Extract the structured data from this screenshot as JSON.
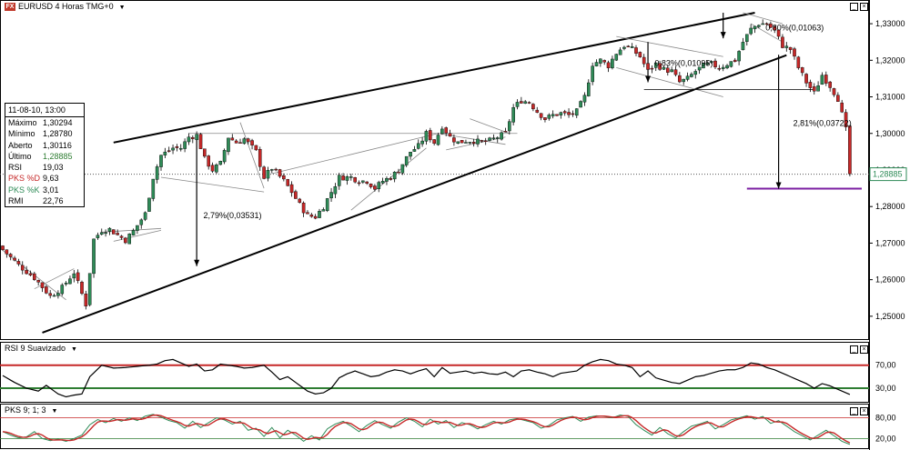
{
  "window": {
    "symbol_badge": "FX",
    "title": "EURUSD 4 Horas TMG+0"
  },
  "data_box": {
    "datetime": "11-08-10, 13:00",
    "rows": [
      {
        "label": "Máximo",
        "value": "1,30294",
        "color": "#000000"
      },
      {
        "label": "Mínimo",
        "value": "1,28780",
        "color": "#000000"
      },
      {
        "label": "Aberto",
        "value": "1,30116",
        "color": "#000000"
      },
      {
        "label": "Último",
        "value": "1,28885",
        "color": "#2e7d32"
      },
      {
        "label": "RSI",
        "value": "19,03",
        "color": "#000000"
      },
      {
        "label": "PKS %D",
        "value": "9,63",
        "color": "#c62828"
      },
      {
        "label": "PKS %K",
        "value": "3,01",
        "color": "#2e8b57"
      },
      {
        "label": "RMI",
        "value": "22,76",
        "color": "#000000"
      }
    ]
  },
  "rsi_pane": {
    "title": "RSI 9 Suavizado",
    "ticks": [
      "70,00",
      "30,00"
    ]
  },
  "pks_pane": {
    "title": "PKS 9; 1; 3",
    "ticks": [
      "80,00",
      "20,00"
    ]
  },
  "colors": {
    "up": "#2e8b57",
    "down": "#c62828",
    "rsi_line": "#000000",
    "pks_k": "#2e8b57",
    "pks_d": "#c62828",
    "target_line": "#7b1fa2"
  },
  "chart_data": {
    "type": "candlestick",
    "symbol": "EURUSD",
    "timeframe": "4 Horas",
    "y_ticks": [
      "1,33000",
      "1,32000",
      "1,31000",
      "1,30000",
      "1,29000",
      "1,28000",
      "1,27000",
      "1,26000",
      "1,25000"
    ],
    "ylim": [
      1.244,
      1.334
    ],
    "last_price": "1,28885",
    "annotations": [
      {
        "text": "2,79%(0,03531)",
        "x_index": 50,
        "y": 1.2768
      },
      {
        "text": "0,83%(0,01095)",
        "x_index": 164,
        "y": 1.3185
      },
      {
        "text": "0,80%(0,01063)",
        "x_index": 192,
        "y": 1.3282
      },
      {
        "text": "2,81%(0,03722)",
        "x_index": 199,
        "y": 1.302
      }
    ],
    "anchors": [
      [
        0,
        1.2682
      ],
      [
        4,
        1.264
      ],
      [
        8,
        1.2605
      ],
      [
        12,
        1.2555
      ],
      [
        15,
        1.2578
      ],
      [
        18,
        1.262
      ],
      [
        21,
        1.2532
      ],
      [
        23,
        1.271
      ],
      [
        25,
        1.2735
      ],
      [
        27,
        1.2738
      ],
      [
        29,
        1.2722
      ],
      [
        31,
        1.2708
      ],
      [
        33,
        1.2733
      ],
      [
        36,
        1.278
      ],
      [
        38,
        1.288
      ],
      [
        40,
        1.294
      ],
      [
        43,
        1.296
      ],
      [
        45,
        1.296
      ],
      [
        47,
        1.299
      ],
      [
        49,
        1.2995
      ],
      [
        51,
        1.293
      ],
      [
        53,
        1.29
      ],
      [
        55,
        1.2918
      ],
      [
        57,
        1.299
      ],
      [
        59,
        1.2975
      ],
      [
        61,
        1.2985
      ],
      [
        64,
        1.295
      ],
      [
        66,
        1.288
      ],
      [
        68,
        1.2905
      ],
      [
        71,
        1.287
      ],
      [
        73,
        1.284
      ],
      [
        75,
        1.2805
      ],
      [
        77,
        1.2775
      ],
      [
        79,
        1.2772
      ],
      [
        81,
        1.28
      ],
      [
        83,
        1.284
      ],
      [
        85,
        1.288
      ],
      [
        88,
        1.288
      ],
      [
        90,
        1.287
      ],
      [
        92,
        1.287
      ],
      [
        94,
        1.285
      ],
      [
        96,
        1.287
      ],
      [
        98,
        1.288
      ],
      [
        100,
        1.29
      ],
      [
        103,
        1.295
      ],
      [
        105,
        1.2965
      ],
      [
        107,
        1.3
      ],
      [
        109,
        1.2975
      ],
      [
        111,
        1.302
      ],
      [
        113,
        1.299
      ],
      [
        115,
        1.2975
      ],
      [
        117,
        1.298
      ],
      [
        119,
        1.298
      ],
      [
        121,
        1.2975
      ],
      [
        123,
        1.298
      ],
      [
        125,
        1.299
      ],
      [
        127,
        1.3
      ],
      [
        129,
        1.307
      ],
      [
        131,
        1.309
      ],
      [
        133,
        1.3085
      ],
      [
        135,
        1.306
      ],
      [
        137,
        1.304
      ],
      [
        139,
        1.305
      ],
      [
        141,
        1.3055
      ],
      [
        143,
        1.305
      ],
      [
        145,
        1.306
      ],
      [
        147,
        1.31
      ],
      [
        149,
        1.319
      ],
      [
        151,
        1.32
      ],
      [
        153,
        1.3185
      ],
      [
        155,
        1.322
      ],
      [
        157,
        1.324
      ],
      [
        159,
        1.323
      ],
      [
        161,
        1.321
      ],
      [
        163,
        1.317
      ],
      [
        165,
        1.319
      ],
      [
        167,
        1.3175
      ],
      [
        169,
        1.317
      ],
      [
        171,
        1.314
      ],
      [
        173,
        1.315
      ],
      [
        175,
        1.317
      ],
      [
        177,
        1.3185
      ],
      [
        179,
        1.319
      ],
      [
        181,
        1.318
      ],
      [
        183,
        1.319
      ],
      [
        185,
        1.32
      ],
      [
        187,
        1.325
      ],
      [
        189,
        1.3285
      ],
      [
        191,
        1.33
      ],
      [
        193,
        1.33
      ],
      [
        195,
        1.328
      ],
      [
        197,
        1.324
      ],
      [
        199,
        1.323
      ],
      [
        201,
        1.318
      ],
      [
        203,
        1.314
      ],
      [
        205,
        1.311
      ],
      [
        207,
        1.316
      ],
      [
        209,
        1.313
      ],
      [
        211,
        1.3095
      ],
      [
        213,
        1.301
      ],
      [
        214,
        1.2889
      ]
    ],
    "rsi_anchors": [
      [
        0,
        52
      ],
      [
        3,
        40
      ],
      [
        6,
        30
      ],
      [
        9,
        25
      ],
      [
        11,
        35
      ],
      [
        14,
        20
      ],
      [
        16,
        15
      ],
      [
        18,
        18
      ],
      [
        20,
        20
      ],
      [
        22,
        50
      ],
      [
        25,
        70
      ],
      [
        28,
        65
      ],
      [
        31,
        66
      ],
      [
        34,
        68
      ],
      [
        37,
        70
      ],
      [
        39,
        72
      ],
      [
        41,
        78
      ],
      [
        43,
        80
      ],
      [
        45,
        74
      ],
      [
        47,
        68
      ],
      [
        49,
        72
      ],
      [
        51,
        60
      ],
      [
        53,
        62
      ],
      [
        55,
        72
      ],
      [
        57,
        70
      ],
      [
        59,
        68
      ],
      [
        61,
        65
      ],
      [
        63,
        66
      ],
      [
        66,
        70
      ],
      [
        68,
        58
      ],
      [
        70,
        45
      ],
      [
        72,
        50
      ],
      [
        74,
        40
      ],
      [
        77,
        25
      ],
      [
        79,
        20
      ],
      [
        81,
        22
      ],
      [
        83,
        30
      ],
      [
        85,
        48
      ],
      [
        87,
        55
      ],
      [
        89,
        60
      ],
      [
        91,
        55
      ],
      [
        93,
        50
      ],
      [
        95,
        52
      ],
      [
        97,
        58
      ],
      [
        99,
        62
      ],
      [
        101,
        60
      ],
      [
        103,
        55
      ],
      [
        105,
        60
      ],
      [
        107,
        64
      ],
      [
        109,
        50
      ],
      [
        111,
        66
      ],
      [
        113,
        56
      ],
      [
        115,
        58
      ],
      [
        117,
        60
      ],
      [
        119,
        56
      ],
      [
        121,
        58
      ],
      [
        123,
        55
      ],
      [
        125,
        54
      ],
      [
        127,
        58
      ],
      [
        129,
        50
      ],
      [
        131,
        60
      ],
      [
        133,
        62
      ],
      [
        135,
        58
      ],
      [
        137,
        55
      ],
      [
        139,
        50
      ],
      [
        141,
        56
      ],
      [
        143,
        58
      ],
      [
        145,
        60
      ],
      [
        147,
        70
      ],
      [
        149,
        76
      ],
      [
        151,
        80
      ],
      [
        153,
        78
      ],
      [
        155,
        72
      ],
      [
        157,
        70
      ],
      [
        159,
        66
      ],
      [
        161,
        50
      ],
      [
        163,
        60
      ],
      [
        165,
        48
      ],
      [
        167,
        44
      ],
      [
        169,
        40
      ],
      [
        171,
        38
      ],
      [
        173,
        44
      ],
      [
        175,
        50
      ],
      [
        177,
        52
      ],
      [
        179,
        56
      ],
      [
        181,
        60
      ],
      [
        183,
        62
      ],
      [
        185,
        62
      ],
      [
        187,
        66
      ],
      [
        189,
        74
      ],
      [
        191,
        72
      ],
      [
        193,
        66
      ],
      [
        195,
        62
      ],
      [
        197,
        56
      ],
      [
        199,
        50
      ],
      [
        201,
        44
      ],
      [
        203,
        38
      ],
      [
        205,
        30
      ],
      [
        207,
        38
      ],
      [
        209,
        34
      ],
      [
        211,
        28
      ],
      [
        213,
        22
      ],
      [
        214,
        19
      ]
    ],
    "pks_anchors": [
      [
        0,
        40
      ],
      [
        2,
        30
      ],
      [
        4,
        22
      ],
      [
        6,
        25
      ],
      [
        8,
        40
      ],
      [
        10,
        20
      ],
      [
        12,
        14
      ],
      [
        14,
        18
      ],
      [
        16,
        12
      ],
      [
        18,
        20
      ],
      [
        20,
        30
      ],
      [
        22,
        60
      ],
      [
        24,
        75
      ],
      [
        26,
        66
      ],
      [
        28,
        78
      ],
      [
        30,
        70
      ],
      [
        32,
        80
      ],
      [
        34,
        72
      ],
      [
        36,
        85
      ],
      [
        38,
        90
      ],
      [
        40,
        82
      ],
      [
        42,
        72
      ],
      [
        44,
        66
      ],
      [
        46,
        50
      ],
      [
        48,
        70
      ],
      [
        50,
        52
      ],
      [
        52,
        66
      ],
      [
        54,
        80
      ],
      [
        56,
        74
      ],
      [
        58,
        62
      ],
      [
        60,
        70
      ],
      [
        62,
        44
      ],
      [
        64,
        50
      ],
      [
        66,
        26
      ],
      [
        68,
        52
      ],
      [
        70,
        22
      ],
      [
        72,
        44
      ],
      [
        74,
        30
      ],
      [
        76,
        12
      ],
      [
        78,
        28
      ],
      [
        80,
        16
      ],
      [
        82,
        48
      ],
      [
        84,
        62
      ],
      [
        86,
        70
      ],
      [
        88,
        56
      ],
      [
        90,
        40
      ],
      [
        92,
        58
      ],
      [
        94,
        72
      ],
      [
        96,
        60
      ],
      [
        98,
        50
      ],
      [
        100,
        68
      ],
      [
        102,
        80
      ],
      [
        104,
        70
      ],
      [
        106,
        54
      ],
      [
        108,
        76
      ],
      [
        110,
        62
      ],
      [
        112,
        72
      ],
      [
        114,
        52
      ],
      [
        116,
        66
      ],
      [
        118,
        60
      ],
      [
        120,
        48
      ],
      [
        122,
        60
      ],
      [
        124,
        70
      ],
      [
        126,
        62
      ],
      [
        128,
        74
      ],
      [
        130,
        78
      ],
      [
        132,
        72
      ],
      [
        134,
        66
      ],
      [
        136,
        50
      ],
      [
        138,
        58
      ],
      [
        140,
        74
      ],
      [
        142,
        80
      ],
      [
        144,
        84
      ],
      [
        146,
        70
      ],
      [
        148,
        82
      ],
      [
        150,
        86
      ],
      [
        152,
        84
      ],
      [
        154,
        80
      ],
      [
        156,
        88
      ],
      [
        158,
        84
      ],
      [
        160,
        60
      ],
      [
        162,
        44
      ],
      [
        164,
        30
      ],
      [
        166,
        52
      ],
      [
        168,
        34
      ],
      [
        170,
        22
      ],
      [
        172,
        40
      ],
      [
        174,
        56
      ],
      [
        176,
        62
      ],
      [
        178,
        70
      ],
      [
        180,
        48
      ],
      [
        182,
        60
      ],
      [
        184,
        74
      ],
      [
        186,
        80
      ],
      [
        188,
        86
      ],
      [
        190,
        76
      ],
      [
        192,
        84
      ],
      [
        194,
        64
      ],
      [
        196,
        72
      ],
      [
        198,
        56
      ],
      [
        200,
        40
      ],
      [
        202,
        28
      ],
      [
        204,
        16
      ],
      [
        206,
        30
      ],
      [
        208,
        44
      ],
      [
        210,
        28
      ],
      [
        212,
        12
      ],
      [
        214,
        3
      ]
    ]
  }
}
